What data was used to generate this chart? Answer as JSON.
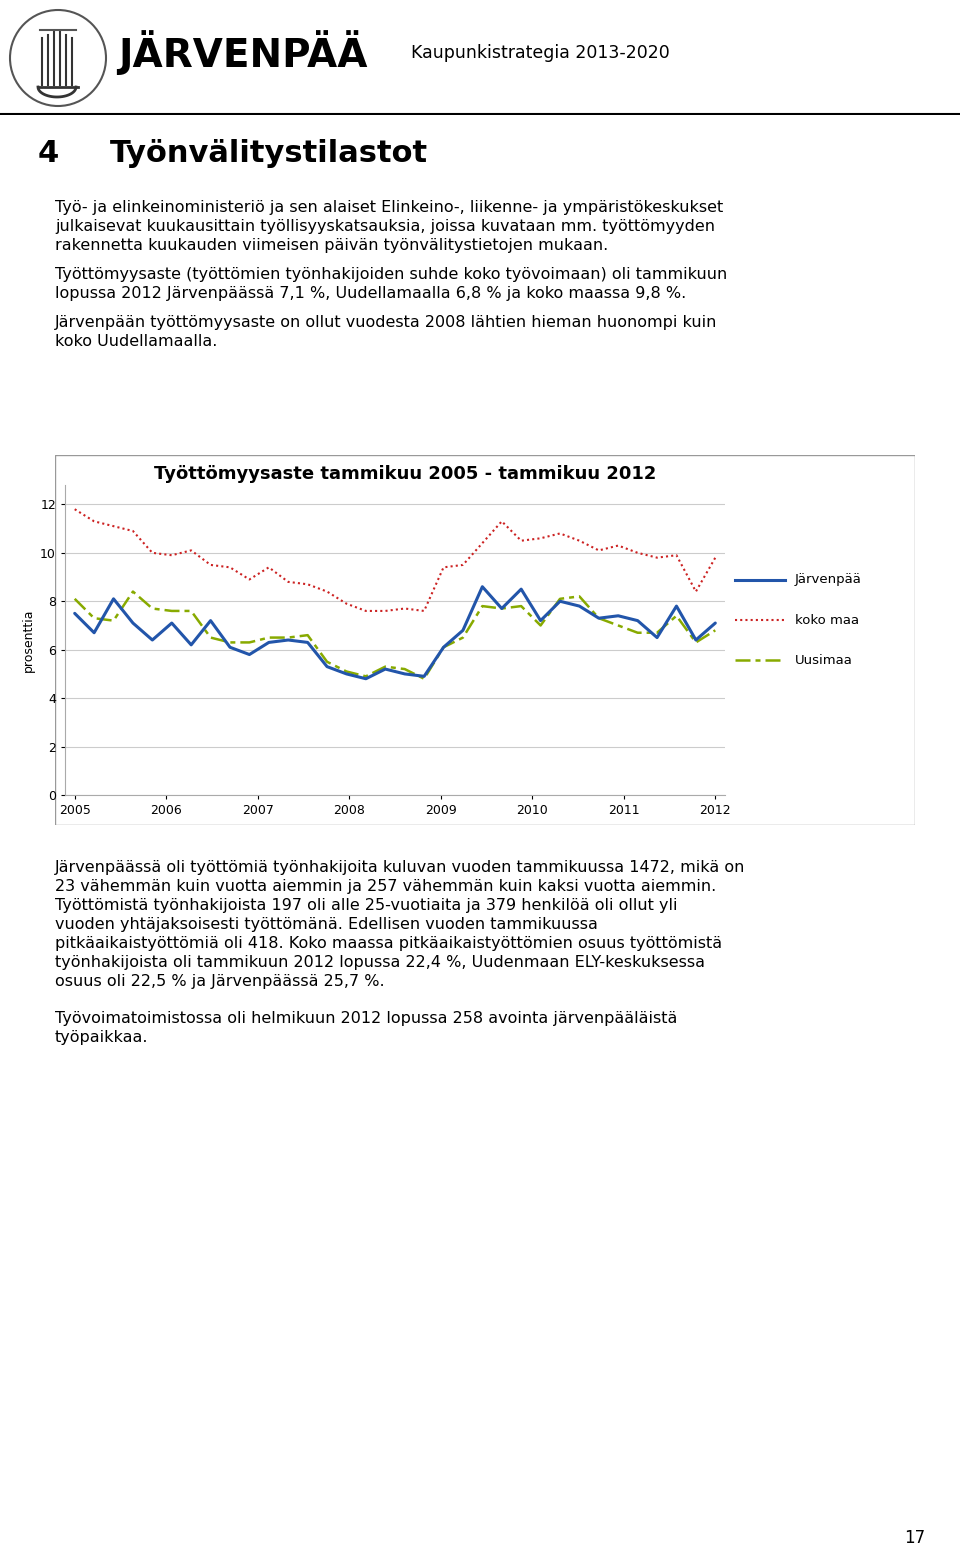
{
  "title": "Työnvälitystilastot",
  "section_number": "4",
  "header_center": "Kaupunkistrategia 2013-2020",
  "page_number": "17",
  "chart_title": "Työttömyysaste tammikuu 2005 - tammikuu 2012",
  "ylabel": "prosenttia",
  "yticks": [
    0,
    2,
    4,
    6,
    8,
    10,
    12
  ],
  "ylim": [
    0,
    12.8
  ],
  "xtick_labels": [
    "2005",
    "2006",
    "2007",
    "2008",
    "2009",
    "2010",
    "2011",
    "2012"
  ],
  "legend_labels": [
    "Järvenpää",
    "koko maa",
    "Uusimaa"
  ],
  "line_colors": [
    "#2255AA",
    "#CC2222",
    "#88AA00"
  ],
  "body_text_1a": "Työ- ja elinkeinoministeriö ja sen alaiset Elinkeino-, liikenne- ja ympäristökeskukset",
  "body_text_1b": "julkaisevat kuukausittain työllisyyskatsauksia, joissa kuvataan mm. työttömyyden",
  "body_text_1c": "rakennetta kuukauden viimeisen päivän työnvälitystietojen mukaan.",
  "body_text_2a": "Työttömyysaste (työttömien työnhakijoiden suhde koko työvoimaan) oli tammikuun",
  "body_text_2b": "lopussa 2012 Järvenpäässä 7,1 %, Uudellamaalla 6,8 % ja koko maassa 9,8 %.",
  "body_text_3a": "Järvenpään työttömyysaste on ollut vuodesta 2008 lähtien hieman huonompi kuin",
  "body_text_3b": "koko Uudellamaalla.",
  "body_text_4a": "Järvenpäässä oli työttömiä työnhakijoita kuluvan vuoden tammikuussa 1472, mikä on",
  "body_text_4b": "23 vähemmän kuin vuotta aiemmin ja 257 vähemmän kuin kaksi vuotta aiemmin.",
  "body_text_4c": "Työttömistä työnhakijoista 197 oli alle 25-vuotiaita ja 379 henkilöä oli ollut yli",
  "body_text_4d": "vuoden yhtäjaksoisesti työttömänä. Edellisen vuoden tammikuussa",
  "body_text_4e": "pitkäaikaistyöttömiä oli 418. Koko maassa pitkäaikaistyöttömien osuus työttömistä",
  "body_text_4f": "työnhakijoista oli tammikuun 2012 lopussa 22,4 %, Uudenmaan ELY-keskuksessa",
  "body_text_4g": "osuus oli 22,5 % ja Järvenpäässä 25,7 %.",
  "body_text_5a": "Työvoimatoimistossa oli helmikuun 2012 lopussa 258 avointa järvenpääläistä",
  "body_text_5b": "työpaikkaa.",
  "jarvenpaa": [
    7.5,
    6.7,
    8.1,
    7.1,
    6.4,
    7.1,
    6.2,
    7.2,
    6.1,
    5.8,
    6.3,
    6.4,
    6.3,
    5.3,
    5.0,
    4.8,
    5.2,
    5.0,
    4.9,
    6.1,
    6.8,
    8.6,
    7.7,
    8.5,
    7.2,
    8.0,
    7.8,
    7.3,
    7.4,
    7.2,
    6.5,
    7.8,
    6.4,
    7.1
  ],
  "koko_maa": [
    11.8,
    11.3,
    11.1,
    10.9,
    10.0,
    9.9,
    10.1,
    9.5,
    9.4,
    8.9,
    9.4,
    8.8,
    8.7,
    8.4,
    7.9,
    7.6,
    7.6,
    7.7,
    7.6,
    9.4,
    9.5,
    10.4,
    11.3,
    10.5,
    10.6,
    10.8,
    10.5,
    10.1,
    10.3,
    10.0,
    9.8,
    9.9,
    8.4,
    9.8
  ],
  "uusimaa": [
    8.1,
    7.3,
    7.2,
    8.4,
    7.7,
    7.6,
    7.6,
    6.5,
    6.3,
    6.3,
    6.5,
    6.5,
    6.6,
    5.5,
    5.1,
    4.9,
    5.3,
    5.2,
    4.8,
    6.1,
    6.5,
    7.8,
    7.7,
    7.8,
    7.0,
    8.1,
    8.2,
    7.3,
    7.0,
    6.7,
    6.7,
    7.4,
    6.3,
    6.8
  ],
  "n_months": 34,
  "background_color": "#FFFFFF",
  "chart_bg": "#FFFFFF",
  "grid_color": "#CCCCCC"
}
